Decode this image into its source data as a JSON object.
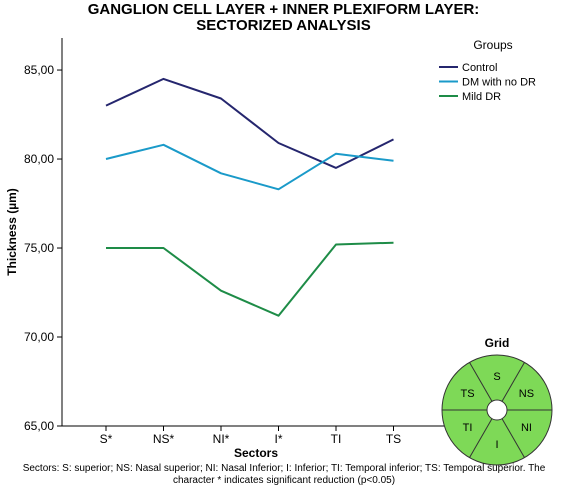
{
  "chart_data": {
    "type": "line",
    "title_line1": "GANGLION CELL LAYER + INNER PLEXIFORM LAYER:",
    "title_line2": "SECTORIZED ANALYSIS",
    "xlabel": "Sectors",
    "ylabel": "Thickness (µm)",
    "categories": [
      "S*",
      "NS*",
      "NI*",
      "I*",
      "TI",
      "TS"
    ],
    "yticks": [
      "65,00",
      "70,00",
      "75,00",
      "80,00",
      "85,00"
    ],
    "ylim": [
      65,
      86.8
    ],
    "legend_title": "Groups",
    "legend_position": "top-right",
    "series": [
      {
        "name": "Control",
        "color": "#25266e",
        "values": [
          83.0,
          84.5,
          83.4,
          80.9,
          79.5,
          81.1
        ]
      },
      {
        "name": "DM with no DR",
        "color": "#1a9ac9",
        "values": [
          80.0,
          80.8,
          79.2,
          78.3,
          80.3,
          79.9
        ]
      },
      {
        "name": "Mild DR",
        "color": "#1e8c47",
        "values": [
          75.0,
          75.0,
          72.6,
          71.2,
          75.2,
          75.3
        ]
      }
    ],
    "grid": {
      "title": "Grid",
      "fill": "#7ed957",
      "labels": [
        "S",
        "NS",
        "NI",
        "I",
        "TI",
        "TS"
      ]
    },
    "note_line1": "Sectors: S: superior; NS: Nasal superior; NI: Nasal Inferior; I: Inferior; TI: Temporal inferior; TS: Temporal superior. The",
    "note_line2": "character * indicates significant reduction (p<0.05)"
  }
}
